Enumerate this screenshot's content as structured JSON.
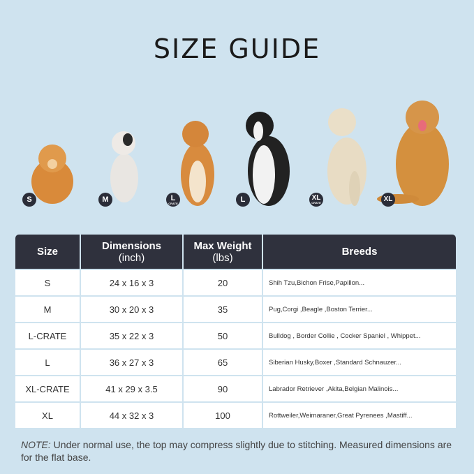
{
  "title": "SIZE GUIDE",
  "badges": [
    {
      "label": "S",
      "sub": ""
    },
    {
      "label": "M",
      "sub": ""
    },
    {
      "label": "L",
      "sub": "CRATE"
    },
    {
      "label": "L",
      "sub": ""
    },
    {
      "label": "XL",
      "sub": "CRATE"
    },
    {
      "label": "XL",
      "sub": ""
    }
  ],
  "table": {
    "headers": {
      "size": "Size",
      "dim1": "Dimensions",
      "dim2": "(inch)",
      "wt1": "Max Weight",
      "wt2": "(lbs)",
      "breeds": "Breeds"
    },
    "rows": [
      {
        "size": "S",
        "dimensions": "24 x 16 x 3",
        "weight": "20",
        "breeds": "Shih Tzu,Bichon Frise,Papillon..."
      },
      {
        "size": "M",
        "dimensions": "30 x 20 x 3",
        "weight": "35",
        "breeds": "Pug,Corgi ,Beagle ,Boston Terrier..."
      },
      {
        "size": "L-CRATE",
        "dimensions": "35 x 22 x 3",
        "weight": "50",
        "breeds": "Bulldog , Border Collie , Cocker Spaniel , Whippet..."
      },
      {
        "size": "L",
        "dimensions": "36 x 27 x 3",
        "weight": "65",
        "breeds": "Siberian Husky,Boxer ,Standard Schnauzer..."
      },
      {
        "size": "XL-CRATE",
        "dimensions": "41 x 29 x 3.5",
        "weight": "90",
        "breeds": "Labrador Retriever ,Akita,Belgian Malinois..."
      },
      {
        "size": "XL",
        "dimensions": "44 x 32 x 3",
        "weight": "100",
        "breeds": "Rottweiler,Weimaraner,Great Pyrenees ,Mastiff..."
      }
    ]
  },
  "note": {
    "label": "NOTE:",
    "text": " Under normal use, the top may compress slightly due to stitching. Measured dimensions are for the flat base."
  }
}
